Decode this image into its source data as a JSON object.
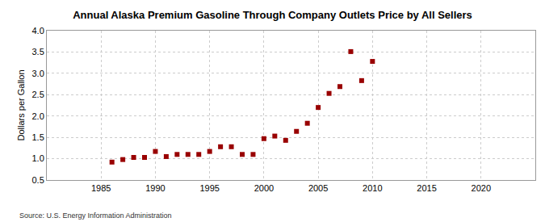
{
  "chart_data": {
    "type": "scatter",
    "title": "Annual Alaska Premium Gasoline Through Company Outlets Price by All Sellers",
    "y_label": "Dollars per Gallon",
    "source": "Source: U.S. Energy Information Administration",
    "x": [
      1986,
      1987,
      1988,
      1989,
      1990,
      1991,
      1992,
      1993,
      1994,
      1995,
      1996,
      1997,
      1998,
      1999,
      2000,
      2001,
      2002,
      2003,
      2004,
      2005,
      2006,
      2007,
      2008,
      2009,
      2010
    ],
    "values": [
      0.92,
      0.98,
      1.03,
      1.03,
      1.17,
      1.05,
      1.1,
      1.1,
      1.1,
      1.17,
      1.28,
      1.28,
      1.1,
      1.1,
      1.47,
      1.53,
      1.43,
      1.64,
      1.83,
      2.2,
      2.53,
      2.69,
      3.51,
      2.83,
      3.28
    ],
    "color": "#990000",
    "marker": "square",
    "xlim": [
      1980,
      2025
    ],
    "xticks": [
      1985,
      1990,
      1995,
      2000,
      2005,
      2010,
      2015,
      2020
    ],
    "ylim": [
      0.5,
      4.0
    ],
    "yticks": [
      0.5,
      {
        "value": 1.0,
        "label": "1.0"
      },
      1.5,
      {
        "value": 2.0,
        "label": "2.0"
      },
      2.5,
      {
        "value": 3.0,
        "label": "3.0"
      },
      3.5,
      {
        "value": 4.0,
        "label": "4.0"
      }
    ],
    "grid": true
  }
}
